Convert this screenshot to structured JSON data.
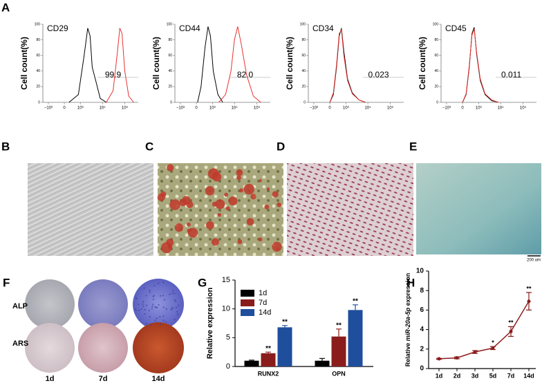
{
  "panel_labels": [
    "A",
    "B",
    "C",
    "D",
    "E",
    "F",
    "G",
    "H"
  ],
  "scale_bar": "200 um",
  "f_rows": [
    "ALP",
    "ARS"
  ],
  "f_cols": [
    "1d",
    "7d",
    "14d"
  ],
  "chart_data": [
    {
      "type": "flow",
      "title": "CD29",
      "ylabel": "Cell count(%)",
      "ylim": [
        0,
        100
      ],
      "yticks": [
        0,
        20,
        40,
        60,
        80,
        100
      ],
      "xlim": [
        -1800,
        400000
      ],
      "xticks": [
        {
          "value": -1000,
          "label": "−10³"
        },
        0,
        {
          "value": 1000,
          "label": "10³"
        },
        {
          "value": 10000,
          "label": "10⁴"
        },
        {
          "value": 100000,
          "label": "10⁵"
        }
      ],
      "gate": {
        "value": 99.9,
        "label": "99.9"
      },
      "series": [
        {
          "color": "#000000",
          "x": [
            200,
            800,
            1500,
            2200,
            2800,
            3500,
            5000,
            8000,
            15000
          ],
          "y": [
            0,
            10,
            60,
            95,
            85,
            45,
            28,
            5,
            0
          ]
        },
        {
          "color": "#e8312f",
          "x": [
            15000,
            30000,
            45000,
            60000,
            75000,
            100000,
            150000,
            250000
          ],
          "y": [
            0,
            15,
            60,
            95,
            88,
            40,
            8,
            0
          ]
        }
      ]
    },
    {
      "type": "flow",
      "title": "CD44",
      "ylabel": "Cell count(%)",
      "ylim": [
        0,
        100
      ],
      "yticks": [
        0,
        20,
        40,
        60,
        80,
        100
      ],
      "xlim": [
        -1800,
        400000
      ],
      "xticks": [
        {
          "value": -1000,
          "label": "−10³"
        },
        0,
        {
          "value": 1000,
          "label": "10³"
        },
        {
          "value": 10000,
          "label": "10⁴"
        },
        {
          "value": 100000,
          "label": "10⁵"
        }
      ],
      "gate": {
        "value": 82.0,
        "label": "82.0"
      },
      "series": [
        {
          "color": "#000000",
          "x": [
            50,
            200,
            400,
            600,
            800,
            1100,
            1800,
            3000
          ],
          "y": [
            0,
            20,
            70,
            97,
            85,
            40,
            10,
            0
          ]
        },
        {
          "color": "#e8312f",
          "x": [
            2000,
            4000,
            7000,
            10000,
            14000,
            20000,
            35000,
            70000,
            150000
          ],
          "y": [
            0,
            10,
            40,
            80,
            97,
            75,
            35,
            8,
            0
          ]
        }
      ]
    },
    {
      "type": "flow",
      "title": "CD34",
      "ylabel": "Cell count(%)",
      "ylim": [
        0,
        100
      ],
      "yticks": [
        0,
        20,
        40,
        60,
        80,
        100
      ],
      "xlim": [
        -1800,
        400000
      ],
      "xticks": [
        {
          "value": -1000,
          "label": "−10³"
        },
        0,
        {
          "value": 1000,
          "label": "10³"
        },
        {
          "value": 10000,
          "label": "10⁴"
        },
        {
          "value": 100000,
          "label": "10⁵"
        }
      ],
      "gate": {
        "value": 0.023,
        "label": "0.023"
      },
      "series": [
        {
          "color": "#000000",
          "x": [
            0,
            150,
            300,
            450,
            600,
            800,
            1200,
            2000,
            4000,
            8000
          ],
          "y": [
            0,
            10,
            45,
            85,
            95,
            65,
            30,
            12,
            3,
            0
          ]
        },
        {
          "color": "#e8312f",
          "x": [
            0,
            150,
            300,
            450,
            600,
            800,
            1200,
            2000,
            4000,
            8000
          ],
          "y": [
            0,
            12,
            48,
            88,
            93,
            60,
            28,
            11,
            3,
            0
          ]
        }
      ]
    },
    {
      "type": "flow",
      "title": "CD45",
      "ylabel": "Cell count(%)",
      "ylim": [
        0,
        100
      ],
      "yticks": [
        0,
        20,
        40,
        60,
        80,
        100
      ],
      "xlim": [
        -1800,
        400000
      ],
      "xticks": [
        {
          "value": -1000,
          "label": "−10³"
        },
        0,
        {
          "value": 1000,
          "label": "10³"
        },
        {
          "value": 10000,
          "label": "10⁴"
        },
        {
          "value": 100000,
          "label": "10⁵"
        }
      ],
      "gate": {
        "value": 0.011,
        "label": "0.011"
      },
      "series": [
        {
          "color": "#000000",
          "x": [
            0,
            150,
            300,
            450,
            600,
            800,
            1200,
            2000,
            4000,
            8000
          ],
          "y": [
            0,
            10,
            45,
            88,
            96,
            62,
            28,
            10,
            2,
            0
          ]
        },
        {
          "color": "#e8312f",
          "x": [
            0,
            150,
            300,
            450,
            600,
            800,
            1200,
            2000,
            4000,
            8000
          ],
          "y": [
            0,
            11,
            47,
            86,
            94,
            64,
            30,
            11,
            3,
            0
          ]
        }
      ]
    },
    {
      "type": "bar",
      "ylabel": "Relative expression",
      "categories": [
        "RUNX2",
        "OPN"
      ],
      "ylim": [
        0,
        15
      ],
      "yticks": [
        0,
        5,
        10,
        15
      ],
      "legend": "upper left",
      "series": [
        {
          "name": "1d",
          "color": "#000000",
          "values": [
            1.0,
            1.0
          ],
          "errors": [
            0.1,
            0.4
          ]
        },
        {
          "name": "7d",
          "color": "#8b1c1c",
          "values": [
            2.3,
            5.2
          ],
          "errors": [
            0.2,
            1.3
          ],
          "annotations": [
            "**",
            "**"
          ]
        },
        {
          "name": "14d",
          "color": "#1f4e9c",
          "values": [
            6.8,
            9.8
          ],
          "errors": [
            0.3,
            0.9
          ],
          "annotations": [
            "**",
            "**"
          ]
        }
      ]
    },
    {
      "type": "line",
      "ylabel_parts": [
        "Relative ",
        "miR-20a-5p",
        " expression"
      ],
      "categories": [
        "1d",
        "2d",
        "3d",
        "5d",
        "7d",
        "14d"
      ],
      "values": [
        1.0,
        1.1,
        1.7,
        2.1,
        3.8,
        6.9
      ],
      "errors": [
        0.05,
        0.1,
        0.15,
        0.15,
        0.5,
        0.9
      ],
      "annotations": [
        null,
        null,
        null,
        "*",
        "**",
        "**"
      ],
      "color": "#8b1c1c",
      "ylim": [
        0,
        10
      ],
      "yticks": [
        0,
        2,
        4,
        6,
        8,
        10
      ]
    }
  ]
}
